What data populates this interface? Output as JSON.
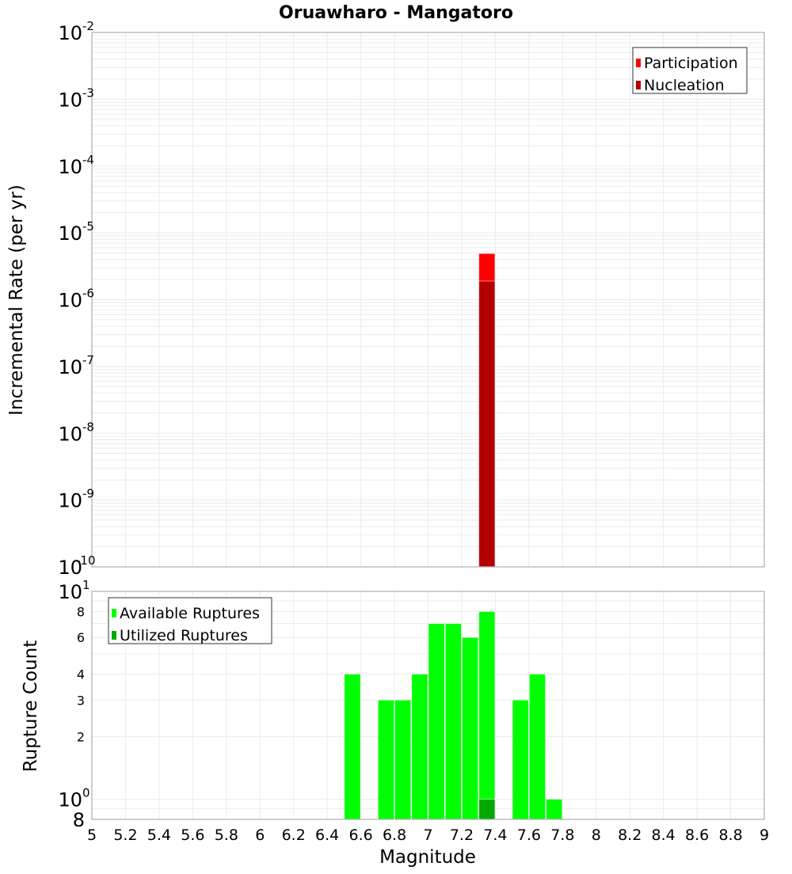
{
  "title": "Oruawharo - Mangatoro",
  "chart_data": [
    {
      "type": "bar",
      "scale": "log",
      "title": "Oruawharo - Mangatoro",
      "xlabel": "Magnitude",
      "ylabel": "Incremental Rate (per yr)",
      "xlim": [
        5,
        9
      ],
      "ylim": [
        1e-10,
        0.01
      ],
      "grid": true,
      "legend_position": "top-right",
      "bin_width": 0.1,
      "y_ticks": [
        {
          "base": "10",
          "exp": "-2",
          "value": 0.01
        },
        {
          "base": "10",
          "exp": "-3",
          "value": 0.001
        },
        {
          "base": "10",
          "exp": "-4",
          "value": 0.0001
        },
        {
          "base": "10",
          "exp": "-5",
          "value": 1e-05
        },
        {
          "base": "10",
          "exp": "-6",
          "value": 1e-06
        },
        {
          "base": "10",
          "exp": "-7",
          "value": 1e-07
        },
        {
          "base": "10",
          "exp": "-8",
          "value": 1e-08
        },
        {
          "base": "10",
          "exp": "-9",
          "value": 1e-09
        },
        {
          "base": "10",
          "exp": "-10",
          "value": 1e-10
        }
      ],
      "series": [
        {
          "name": "Participation",
          "color": "#ff0000",
          "x": [
            7.35
          ],
          "values": [
            4.9e-06
          ]
        },
        {
          "name": "Nucleation",
          "color": "#b30000",
          "x": [
            7.35
          ],
          "values": [
            1.9e-06
          ]
        }
      ]
    },
    {
      "type": "bar",
      "scale": "log",
      "xlabel": "Magnitude",
      "ylabel": "Rupture Count",
      "xlim": [
        5,
        9
      ],
      "ylim": [
        0.8,
        10
      ],
      "grid": true,
      "legend_position": "top-left",
      "bin_width": 0.1,
      "y_ticks": [
        {
          "label": "10",
          "exp": "1",
          "value": 10,
          "major": true
        },
        {
          "label": "8",
          "value": 8
        },
        {
          "label": "6",
          "value": 6
        },
        {
          "label": "4",
          "value": 4
        },
        {
          "label": "3",
          "value": 3
        },
        {
          "label": "2",
          "value": 2
        },
        {
          "label": "10",
          "exp": "0",
          "value": 1,
          "major": true
        },
        {
          "label": "8",
          "value": 0.8,
          "major": true
        }
      ],
      "series": [
        {
          "name": "Available Ruptures",
          "color": "#00ff00",
          "x": [
            6.55,
            6.75,
            6.85,
            6.95,
            7.05,
            7.15,
            7.25,
            7.35,
            7.55,
            7.65,
            7.75
          ],
          "values": [
            4,
            3,
            3,
            4,
            7,
            7,
            6,
            8,
            3,
            4,
            1
          ]
        },
        {
          "name": "Utilized Ruptures",
          "color": "#00aa00",
          "x": [
            7.35
          ],
          "values": [
            1
          ]
        }
      ]
    }
  ],
  "x_ticks": [
    "5",
    "5.2",
    "5.4",
    "5.6",
    "5.8",
    "6",
    "6.2",
    "6.4",
    "6.6",
    "6.8",
    "7",
    "7.2",
    "7.4",
    "7.6",
    "7.8",
    "8",
    "8.2",
    "8.4",
    "8.6",
    "8.8",
    "9"
  ],
  "x_tick_values": [
    5,
    5.2,
    5.4,
    5.6,
    5.8,
    6,
    6.2,
    6.4,
    6.6,
    6.8,
    7,
    7.2,
    7.4,
    7.6,
    7.8,
    8,
    8.2,
    8.4,
    8.6,
    8.8,
    9
  ],
  "colors": {
    "grid": "#ebebeb",
    "axis": "#b4b4b4",
    "bar_edge": "#ffffff"
  }
}
